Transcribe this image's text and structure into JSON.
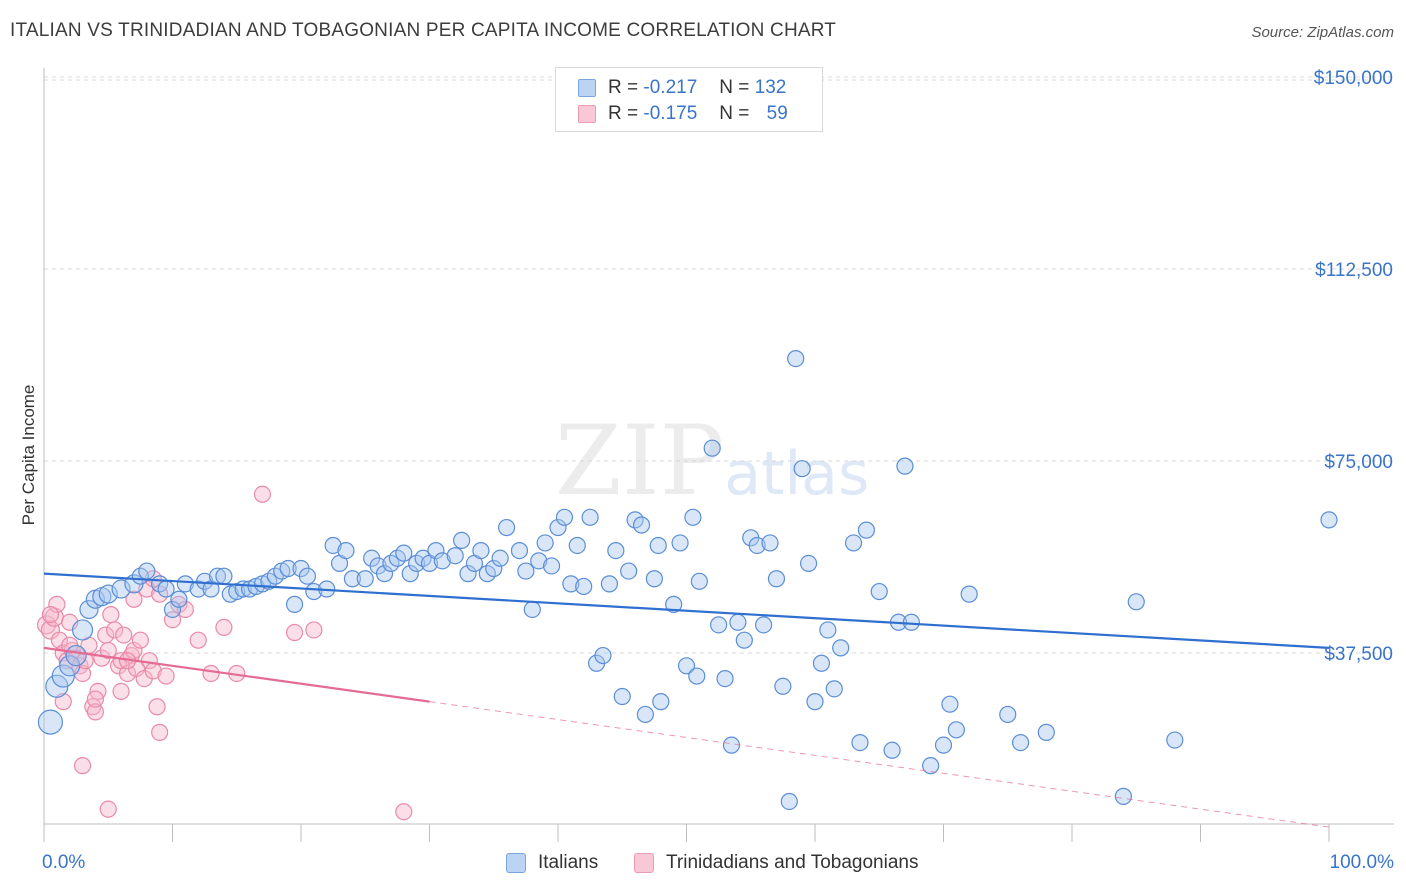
{
  "title": "ITALIAN VS TRINIDADIAN AND TOBAGONIAN PER CAPITA INCOME CORRELATION CHART",
  "source": "Source: ZipAtlas.com",
  "watermark": {
    "zip": "ZIP",
    "atlas": "atlas"
  },
  "legend": {
    "rows": [
      {
        "r_label": "R =",
        "r_value": "-0.217",
        "n_label": "N =",
        "n_value": "132"
      },
      {
        "r_label": "R =",
        "r_value": "-0.175",
        "n_label": "N =",
        "n_value": "59"
      }
    ]
  },
  "bottom_legend": {
    "italians": "Italians",
    "trinidadians": "Trinidadians and Tobagonians"
  },
  "x_axis": {
    "left_label": "0.0%",
    "right_label": "100.0%"
  },
  "colors": {
    "italians_fill": "#a9c8f0",
    "italians_stroke": "#5b8ed6",
    "italians_line": "#2f6fd0",
    "trini_fill": "#f7b9cc",
    "trini_stroke": "#e98aa8",
    "trini_line": "#e46b93",
    "tick_text": "#3a74c8",
    "grid": "#d9d9d9"
  },
  "chart_data": {
    "type": "scatter",
    "title": "ITALIAN VS TRINIDADIAN AND TOBAGONIAN PER CAPITA INCOME CORRELATION CHART",
    "xlabel": "",
    "ylabel": "Per Capita Income",
    "xlim": [
      0,
      100
    ],
    "ylim": [
      0,
      155000
    ],
    "x_unit": "%",
    "y_ticks": [
      {
        "value": 37500,
        "label": "$37,500"
      },
      {
        "value": 75000,
        "label": "$75,000"
      },
      {
        "value": 112500,
        "label": "$112,500"
      },
      {
        "value": 150000,
        "label": "$150,000"
      }
    ],
    "grid": true,
    "legend_position": "top-center",
    "series": [
      {
        "name": "Italians",
        "r": -0.217,
        "n": 132,
        "trend": {
          "x0": 0,
          "y0": 53000,
          "x1": 100,
          "y1": 38500,
          "dashed_x1": 100
        },
        "points": [
          [
            0.5,
            24000,
            12
          ],
          [
            1.0,
            31000,
            11
          ],
          [
            1.5,
            33000,
            11
          ],
          [
            2.0,
            35000,
            10
          ],
          [
            2.5,
            37000,
            10
          ],
          [
            3.0,
            42000,
            10
          ],
          [
            3.5,
            46000,
            9
          ],
          [
            4.0,
            48000,
            9
          ],
          [
            4.5,
            48500,
            9
          ],
          [
            5.0,
            49000,
            9
          ],
          [
            6.0,
            50000,
            9
          ],
          [
            7.0,
            51000,
            9
          ],
          [
            7.5,
            52500,
            8
          ],
          [
            8.0,
            53500,
            8
          ],
          [
            9.0,
            51000,
            8
          ],
          [
            9.5,
            50000,
            8
          ],
          [
            10.0,
            46000,
            8
          ],
          [
            10.5,
            48000,
            8
          ],
          [
            11.0,
            51000,
            8
          ],
          [
            12.0,
            50000,
            8
          ],
          [
            12.5,
            51500,
            8
          ],
          [
            13.0,
            50000,
            8
          ],
          [
            13.5,
            52500,
            8
          ],
          [
            14.0,
            52500,
            8
          ],
          [
            14.5,
            49000,
            8
          ],
          [
            15.0,
            49500,
            8
          ],
          [
            15.5,
            50000,
            8
          ],
          [
            16.0,
            50000,
            8
          ],
          [
            16.5,
            50500,
            8
          ],
          [
            17.0,
            51000,
            8
          ],
          [
            17.5,
            51500,
            8
          ],
          [
            18.0,
            52500,
            8
          ],
          [
            18.5,
            53500,
            8
          ],
          [
            19.0,
            54000,
            8
          ],
          [
            19.5,
            47000,
            8
          ],
          [
            20.0,
            54000,
            8
          ],
          [
            20.5,
            52500,
            8
          ],
          [
            21.0,
            49500,
            8
          ],
          [
            22.0,
            50000,
            8
          ],
          [
            22.5,
            58500,
            8
          ],
          [
            23.0,
            55000,
            8
          ],
          [
            23.5,
            57500,
            8
          ],
          [
            24.0,
            52000,
            8
          ],
          [
            25.0,
            52000,
            8
          ],
          [
            25.5,
            56000,
            8
          ],
          [
            26.0,
            54500,
            8
          ],
          [
            26.5,
            53000,
            8
          ],
          [
            27.0,
            55000,
            8
          ],
          [
            27.5,
            56000,
            8
          ],
          [
            28.0,
            57000,
            8
          ],
          [
            28.5,
            53000,
            8
          ],
          [
            29.0,
            55000,
            8
          ],
          [
            29.5,
            56000,
            8
          ],
          [
            30.0,
            55000,
            8
          ],
          [
            30.5,
            57500,
            8
          ],
          [
            31.0,
            55500,
            8
          ],
          [
            32.0,
            56500,
            8
          ],
          [
            32.5,
            59500,
            8
          ],
          [
            33.0,
            53000,
            8
          ],
          [
            33.5,
            55000,
            8
          ],
          [
            34.0,
            57500,
            8
          ],
          [
            34.5,
            53000,
            8
          ],
          [
            35.0,
            54000,
            8
          ],
          [
            35.5,
            56000,
            8
          ],
          [
            36.0,
            62000,
            8
          ],
          [
            37.0,
            57500,
            8
          ],
          [
            37.5,
            53500,
            8
          ],
          [
            38.0,
            46000,
            8
          ],
          [
            38.5,
            55500,
            8
          ],
          [
            39.0,
            59000,
            8
          ],
          [
            39.5,
            54500,
            8
          ],
          [
            40.0,
            62000,
            8
          ],
          [
            40.5,
            64000,
            8
          ],
          [
            41.0,
            51000,
            8
          ],
          [
            41.5,
            58500,
            8
          ],
          [
            42.0,
            50500,
            8
          ],
          [
            42.5,
            64000,
            8
          ],
          [
            43.0,
            35500,
            8
          ],
          [
            43.5,
            37000,
            8
          ],
          [
            44.0,
            51000,
            8
          ],
          [
            44.5,
            57500,
            8
          ],
          [
            45.0,
            29000,
            8
          ],
          [
            45.5,
            53500,
            8
          ],
          [
            46.0,
            63500,
            8
          ],
          [
            46.5,
            62500,
            8
          ],
          [
            46.8,
            25500,
            8
          ],
          [
            47.5,
            52000,
            8
          ],
          [
            47.8,
            58500,
            8
          ],
          [
            48.0,
            28000,
            8
          ],
          [
            49.0,
            47000,
            8
          ],
          [
            49.5,
            59000,
            8
          ],
          [
            50.0,
            35000,
            8
          ],
          [
            50.5,
            64000,
            8
          ],
          [
            50.8,
            33000,
            8
          ],
          [
            51.0,
            51500,
            8
          ],
          [
            52.0,
            77500,
            8
          ],
          [
            52.5,
            43000,
            8
          ],
          [
            53.0,
            32500,
            8
          ],
          [
            53.5,
            19500,
            8
          ],
          [
            54.0,
            43500,
            8
          ],
          [
            54.5,
            40000,
            8
          ],
          [
            55.0,
            60000,
            8
          ],
          [
            55.5,
            58500,
            8
          ],
          [
            56.0,
            43000,
            8
          ],
          [
            56.5,
            59000,
            8
          ],
          [
            57.0,
            52000,
            8
          ],
          [
            57.5,
            31000,
            8
          ],
          [
            58.0,
            8500,
            8
          ],
          [
            58.5,
            95000,
            8
          ],
          [
            59.0,
            73500,
            8
          ],
          [
            59.5,
            55000,
            8
          ],
          [
            60.0,
            28000,
            8
          ],
          [
            60.5,
            35500,
            8
          ],
          [
            61.0,
            42000,
            8
          ],
          [
            61.5,
            30500,
            8
          ],
          [
            62.0,
            38500,
            8
          ],
          [
            63.0,
            59000,
            8
          ],
          [
            63.5,
            20000,
            8
          ],
          [
            64.0,
            61500,
            8
          ],
          [
            65.0,
            49500,
            8
          ],
          [
            66.0,
            18500,
            8
          ],
          [
            66.5,
            43500,
            8
          ],
          [
            67.0,
            74000,
            8
          ],
          [
            67.5,
            43500,
            8
          ],
          [
            69.0,
            15500,
            8
          ],
          [
            70.0,
            19500,
            8
          ],
          [
            70.5,
            27500,
            8
          ],
          [
            71.0,
            22500,
            8
          ],
          [
            72.0,
            49000,
            8
          ],
          [
            75.0,
            25500,
            8
          ],
          [
            76.0,
            20000,
            8
          ],
          [
            78.0,
            22000,
            8
          ],
          [
            84.0,
            9500,
            8
          ],
          [
            85.0,
            47500,
            8
          ],
          [
            88.0,
            20500,
            8
          ],
          [
            100.0,
            63500,
            8
          ]
        ]
      },
      {
        "name": "Trinidadians and Tobagonians",
        "r": -0.175,
        "n": 59,
        "trend": {
          "x0": 0,
          "y0": 38500,
          "x1": 30,
          "y1": 28000,
          "dashed_x1": 100
        },
        "points": [
          [
            0.2,
            43000,
            9
          ],
          [
            0.5,
            42000,
            9
          ],
          [
            0.8,
            44500,
            9
          ],
          [
            1.0,
            47000,
            8
          ],
          [
            1.2,
            40000,
            8
          ],
          [
            1.5,
            37500,
            8
          ],
          [
            1.8,
            36000,
            8
          ],
          [
            2.0,
            43500,
            8
          ],
          [
            2.2,
            38000,
            8
          ],
          [
            2.5,
            36500,
            8
          ],
          [
            2.8,
            35000,
            8
          ],
          [
            3.0,
            33500,
            8
          ],
          [
            3.2,
            36000,
            8
          ],
          [
            3.5,
            39000,
            8
          ],
          [
            3.8,
            27000,
            8
          ],
          [
            4.0,
            26000,
            8
          ],
          [
            4.2,
            30000,
            8
          ],
          [
            4.5,
            36500,
            8
          ],
          [
            4.8,
            41000,
            8
          ],
          [
            5.0,
            38000,
            8
          ],
          [
            5.2,
            45000,
            8
          ],
          [
            5.5,
            42000,
            8
          ],
          [
            5.8,
            35000,
            8
          ],
          [
            6.0,
            36000,
            8
          ],
          [
            6.2,
            41000,
            8
          ],
          [
            6.5,
            33500,
            8
          ],
          [
            6.8,
            37000,
            8
          ],
          [
            7.0,
            38000,
            8
          ],
          [
            7.2,
            34500,
            8
          ],
          [
            7.5,
            40000,
            8
          ],
          [
            7.8,
            32500,
            8
          ],
          [
            8.0,
            50000,
            8
          ],
          [
            8.2,
            36000,
            8
          ],
          [
            8.5,
            34000,
            8
          ],
          [
            8.8,
            27000,
            8
          ],
          [
            9.0,
            22000,
            8
          ],
          [
            9.5,
            33000,
            8
          ],
          [
            10.0,
            44000,
            8
          ],
          [
            3.0,
            15500,
            8
          ],
          [
            5.0,
            7000,
            8
          ],
          [
            6.5,
            36000,
            8
          ],
          [
            7.0,
            48000,
            8
          ],
          [
            2.0,
            39000,
            8
          ],
          [
            1.5,
            28000,
            8
          ],
          [
            4.0,
            28500,
            8
          ],
          [
            6.0,
            30000,
            8
          ],
          [
            8.5,
            52000,
            8
          ],
          [
            9.0,
            49000,
            8
          ],
          [
            10.5,
            47000,
            8
          ],
          [
            11.0,
            46000,
            8
          ],
          [
            12.0,
            40000,
            8
          ],
          [
            13.0,
            33500,
            8
          ],
          [
            14.0,
            42500,
            8
          ],
          [
            15.0,
            33500,
            8
          ],
          [
            17.0,
            68500,
            8
          ],
          [
            19.5,
            41500,
            8
          ],
          [
            21.0,
            42000,
            8
          ],
          [
            28.0,
            6500,
            8
          ],
          [
            0.5,
            45000,
            8
          ]
        ]
      }
    ]
  }
}
